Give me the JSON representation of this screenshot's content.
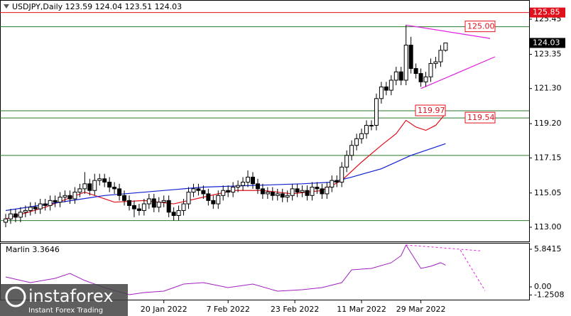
{
  "chart_data": [
    {
      "type": "candlestick",
      "title": "USDJPY,Daily  123.59 124.04 123.51 124.03",
      "open": [
        113.3,
        113.5,
        113.8,
        113.6,
        113.9,
        114.0,
        114.2,
        114.1,
        114.4,
        114.3,
        114.6,
        114.5,
        114.8,
        114.9,
        114.7,
        115.1,
        115.3,
        115.6,
        115.2,
        115.8,
        115.9,
        115.7,
        115.4,
        115.3,
        114.9,
        114.6,
        114.3,
        114.1,
        114.0,
        114.4,
        114.7,
        114.2,
        114.5,
        114.6,
        113.9,
        113.7,
        114.0,
        114.4,
        115.1,
        115.3,
        115.2,
        115.0,
        114.6,
        114.4,
        114.9,
        115.2,
        115.1,
        115.4,
        115.5,
        115.7,
        116.0,
        115.6,
        115.3,
        115.0,
        115.1,
        114.9,
        115.0,
        114.8,
        114.9,
        115.3,
        115.1,
        115.2,
        114.9,
        115.4,
        115.3,
        115.0,
        115.4,
        115.8,
        115.7,
        116.6,
        117.3,
        117.9,
        118.3,
        118.6,
        119.1,
        119.1,
        120.7,
        121.4,
        121.2,
        121.8,
        122.3,
        121.8,
        123.9,
        122.5,
        122.2,
        121.7,
        122.0,
        122.8,
        122.9,
        123.59
      ],
      "high": [
        113.8,
        114.1,
        114.1,
        114.2,
        114.3,
        114.5,
        114.5,
        114.7,
        114.7,
        114.9,
        114.9,
        115.1,
        115.2,
        115.2,
        115.4,
        115.6,
        116.3,
        115.9,
        116.2,
        116.2,
        116.2,
        116.0,
        115.7,
        115.6,
        115.2,
        114.9,
        114.6,
        114.4,
        114.7,
        115.0,
        115.0,
        114.8,
        114.9,
        114.9,
        114.2,
        114.3,
        114.7,
        115.4,
        115.6,
        115.6,
        115.5,
        115.3,
        114.9,
        115.2,
        115.5,
        115.5,
        115.7,
        115.8,
        116.0,
        116.4,
        116.3,
        115.9,
        115.6,
        115.4,
        115.4,
        115.3,
        115.3,
        115.2,
        115.6,
        115.6,
        115.5,
        115.5,
        115.7,
        115.7,
        115.6,
        115.7,
        116.1,
        116.1,
        116.9,
        117.6,
        118.2,
        118.6,
        118.9,
        119.4,
        119.4,
        121.0,
        121.7,
        121.7,
        122.1,
        122.6,
        122.6,
        125.1,
        124.4,
        122.8,
        122.5,
        122.3,
        123.1,
        123.2,
        123.9,
        124.04
      ],
      "low": [
        113.0,
        113.2,
        113.3,
        113.3,
        113.6,
        113.7,
        113.8,
        113.8,
        114.0,
        114.0,
        114.2,
        114.2,
        114.5,
        114.4,
        114.4,
        114.8,
        115.0,
        114.9,
        114.9,
        115.5,
        115.4,
        115.1,
        115.0,
        114.6,
        114.3,
        114.0,
        113.6,
        113.7,
        113.7,
        114.1,
        113.9,
        113.9,
        114.2,
        113.6,
        113.4,
        113.4,
        113.7,
        114.1,
        114.8,
        114.9,
        114.7,
        114.3,
        114.1,
        114.1,
        114.6,
        114.8,
        114.8,
        115.1,
        115.2,
        115.4,
        115.3,
        115.0,
        114.7,
        114.7,
        114.6,
        114.6,
        114.5,
        114.5,
        114.6,
        114.8,
        114.8,
        114.6,
        114.6,
        115.0,
        114.7,
        114.7,
        115.1,
        115.4,
        115.4,
        116.3,
        117.0,
        117.6,
        118.0,
        118.3,
        118.8,
        118.8,
        120.4,
        120.9,
        120.9,
        121.5,
        121.5,
        121.5,
        122.2,
        121.9,
        121.4,
        121.4,
        121.7,
        122.5,
        122.6,
        123.51
      ],
      "close": [
        113.5,
        113.8,
        113.6,
        113.9,
        114.0,
        114.2,
        114.1,
        114.4,
        114.3,
        114.6,
        114.5,
        114.8,
        114.9,
        114.7,
        115.1,
        115.3,
        115.6,
        115.2,
        115.8,
        115.9,
        115.7,
        115.4,
        115.3,
        114.9,
        114.6,
        114.3,
        114.1,
        114.0,
        114.4,
        114.7,
        114.2,
        114.5,
        114.6,
        113.9,
        113.7,
        114.0,
        114.4,
        115.1,
        115.3,
        115.2,
        115.0,
        114.6,
        114.4,
        114.9,
        115.2,
        115.1,
        115.4,
        115.5,
        115.7,
        116.0,
        115.6,
        115.3,
        115.0,
        115.1,
        114.9,
        115.0,
        114.8,
        114.9,
        115.3,
        115.1,
        115.2,
        114.9,
        115.4,
        115.3,
        115.0,
        115.4,
        115.8,
        115.7,
        116.6,
        117.3,
        117.9,
        118.3,
        118.6,
        119.1,
        119.1,
        120.7,
        121.4,
        121.2,
        121.8,
        122.3,
        121.8,
        123.9,
        122.5,
        122.2,
        121.7,
        122.0,
        122.8,
        122.9,
        123.59,
        124.03
      ],
      "xlim": [
        -1.15,
        105.9
      ],
      "ylim": [
        112.15,
        126.6
      ],
      "yticks": [
        {
          "value": 113,
          "label": "113.00"
        },
        {
          "value": 115.05,
          "label": "115.05"
        },
        {
          "value": 117.15,
          "label": "117.15"
        },
        {
          "value": 119.2,
          "label": "119.20"
        },
        {
          "value": 121.3,
          "label": "121.30"
        },
        {
          "value": 123.35,
          "label": "123.35"
        },
        {
          "value": 125.45,
          "label": "125.45"
        }
      ],
      "xticks": [
        {
          "value": 32,
          "label": "20 Jan 2022"
        },
        {
          "value": 45,
          "label": "7 Feb 2022"
        },
        {
          "value": 58.5,
          "label": "23 Feb 2022"
        },
        {
          "value": 72,
          "label": "11 Mar 2022"
        },
        {
          "value": 84,
          "label": "29 Mar 2022"
        }
      ],
      "lines": [
        {
          "color": "#e0101c",
          "x": [
            0,
            8,
            16,
            22,
            28,
            34,
            40,
            46,
            52,
            58,
            64,
            68,
            72,
            76,
            79,
            81,
            83,
            85,
            87,
            89
          ],
          "values": [
            113.5,
            114.2,
            115.1,
            114.5,
            114.6,
            114.4,
            114.8,
            115.2,
            115.2,
            115.0,
            115.2,
            115.8,
            116.9,
            117.9,
            118.6,
            119.4,
            119.0,
            118.8,
            119.1,
            119.8
          ]
        },
        {
          "color": "#1020d0",
          "x": [
            0,
            20,
            40,
            60,
            66,
            70,
            76,
            82,
            86,
            89
          ],
          "values": [
            114.0,
            114.9,
            115.4,
            115.6,
            115.7,
            116.0,
            116.5,
            117.3,
            117.7,
            118.0
          ]
        },
        {
          "color": "#e020e0",
          "x": [
            81,
            98
          ],
          "values": [
            125.1,
            124.3
          ]
        },
        {
          "color": "#e020e0",
          "x": [
            84,
            99
          ],
          "values": [
            121.3,
            123.2
          ]
        }
      ],
      "levels_color": "#2a7a2a",
      "levels": [
        {
          "value": 125.0,
          "label": "125.00"
        },
        {
          "value": 119.97,
          "label": "119.97"
        },
        {
          "value": 119.54,
          "label": "119.54"
        },
        {
          "value": 117.3
        },
        {
          "value": 113.4
        }
      ],
      "resistance": {
        "value": 125.85,
        "label": "125.85",
        "color": "#e0101c"
      },
      "last_price": {
        "value": 124.03,
        "label": "124.03"
      }
    },
    {
      "type": "line",
      "title": "Marlin 3.3646",
      "color": "#a020c0",
      "x": [
        0,
        5,
        10,
        13,
        16,
        20,
        25,
        28,
        32,
        36,
        40,
        45,
        50,
        55,
        60,
        64,
        68,
        70,
        74,
        78,
        80,
        81,
        84,
        86,
        88,
        89
      ],
      "values": [
        1.54,
        0.66,
        1.32,
        2.09,
        0.99,
        -0.11,
        -1.21,
        -0.88,
        -0.66,
        0.44,
        0.66,
        -0.11,
        0.44,
        -0.66,
        -0.44,
        -0.11,
        0.66,
        2.65,
        2.87,
        3.75,
        4.85,
        6.5,
        2.87,
        3.2,
        3.75,
        3.3646
      ],
      "projections": [
        {
          "x": [
            81,
            96
          ],
          "values": [
            6.5,
            5.6
          ]
        },
        {
          "x": [
            92,
            97
          ],
          "values": [
            5.7,
            -0.6
          ]
        }
      ],
      "xlim": [
        -1.15,
        105.9
      ],
      "ylim": [
        -2.09,
        6.72
      ],
      "yticks": [
        5.8415,
        {
          "value": 0,
          "label": "0.00"
        },
        -1.2508
      ]
    }
  ],
  "watermark": {
    "brand": "instaforex",
    "tagline": "Instant Forex Trading"
  }
}
